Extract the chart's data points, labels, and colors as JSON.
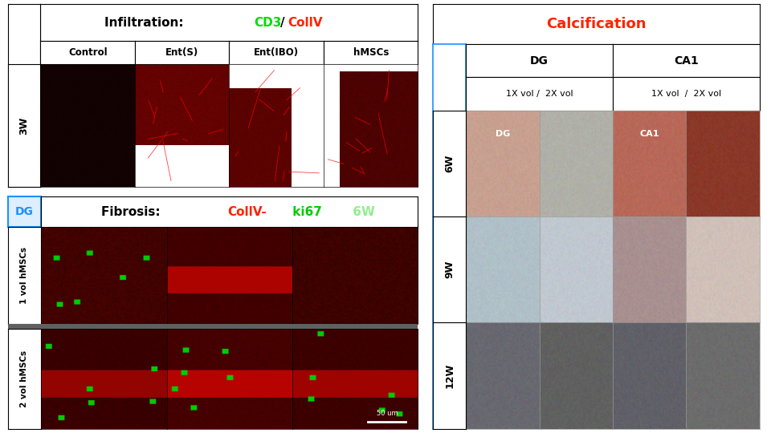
{
  "background_color": "#ffffff",
  "infiltration": {
    "title_prefix": "Infiltration:  ",
    "title_cd3": "CD3",
    "title_slash": "/",
    "title_collv": "CollV",
    "title_cd3_color": "#00dd00",
    "title_collv_color": "#ff2200",
    "col_labels": [
      "Control",
      "Ent(S)",
      "Ent(IBO)",
      "hMSCs"
    ],
    "row_label_dg_color": "#1e90ff",
    "red_intensities": [
      0.1,
      0.55,
      0.5,
      0.42
    ]
  },
  "fibrosis": {
    "title_prefix": "Fibrosis:  ",
    "title_collv": "CollV-",
    "title_ki67": " ki67",
    "title_6w": " 6W",
    "title_collv_color": "#ff2200",
    "title_ki67_color": "#00cc00",
    "title_6w_color": "#90ee90",
    "row_labels": [
      "1 vol hMSCs",
      "2 vol hMSCs"
    ],
    "dg_color": "#1e90ff",
    "scalebar_text": "50 um"
  },
  "calcification": {
    "title": "Calcification",
    "title_color": "#ff2200",
    "msc_color": "#1e90ff",
    "col_headers": [
      "DG",
      "CA1"
    ],
    "sub_headers": [
      "1X vol /  2X vol",
      "1X vol  /  2X vol"
    ],
    "row_labels": [
      "6W",
      "9W",
      "12W"
    ],
    "img_labels_6w": [
      "DG",
      "",
      "CA1",
      ""
    ],
    "cell_colors_6w": [
      "#c8a090",
      "#b0b0a8",
      "#b86858",
      "#8a3828"
    ],
    "cell_colors_9w": [
      "#b0c0c8",
      "#c0c8d0",
      "#a89090",
      "#d0c0b8"
    ],
    "cell_colors_12w": [
      "#686870",
      "#606060",
      "#606068",
      "#6c6c6c"
    ]
  }
}
